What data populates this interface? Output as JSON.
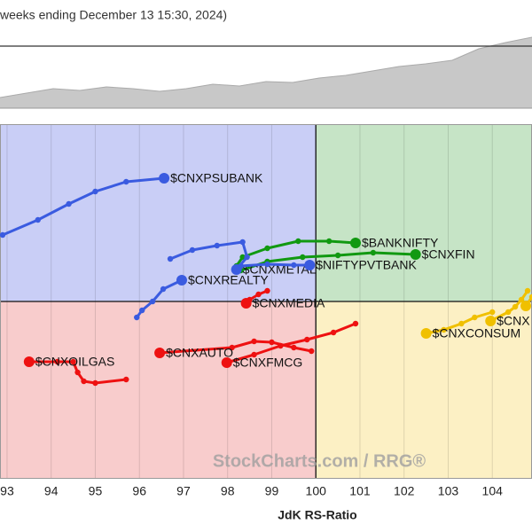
{
  "chart_data": [
    {
      "type": "area",
      "title": "weeks ending December 13 15:30, 2024)",
      "values": [
        12,
        17,
        22,
        20,
        24,
        22,
        19,
        22,
        27,
        25,
        30,
        29,
        34,
        37,
        42,
        47,
        50,
        54,
        67,
        74,
        80
      ],
      "ylim": [
        0,
        82
      ],
      "hline": 70,
      "color": "#c8c8c8"
    },
    {
      "type": "scatter",
      "xlabel": "JdK RS-Ratio",
      "watermark": "StockCharts.com / RRG®",
      "xlim": [
        92.84,
        104.9
      ],
      "ylim": [
        96,
        104
      ],
      "center": [
        100,
        100
      ],
      "xticks": [
        93,
        94,
        95,
        96,
        97,
        98,
        99,
        100,
        101,
        102,
        103,
        104
      ],
      "grid": true,
      "quadrant_colors": [
        "#c9cef6",
        "#c6e4c6",
        "#f8cccc",
        "#fcf0c4"
      ],
      "series": [
        {
          "name": "$CNXPSUBANK",
          "color": "#3a5be0",
          "x": [
            92.9,
            93.7,
            94.4,
            95.0,
            95.7,
            96.56
          ],
          "values": [
            101.5,
            101.84,
            102.2,
            102.48,
            102.7,
            102.78
          ]
        },
        {
          "name": "$BANKNIFTY",
          "color": "#119911",
          "x": [
            98.2,
            98.34,
            98.9,
            99.6,
            100.3,
            100.9
          ],
          "values": [
            100.8,
            101.0,
            101.2,
            101.36,
            101.36,
            101.32
          ]
        },
        {
          "name": "$CNXFIN",
          "color": "#119911",
          "x": [
            98.3,
            98.9,
            99.7,
            100.5,
            101.3,
            102.26
          ],
          "values": [
            100.7,
            100.9,
            101.0,
            101.04,
            101.1,
            101.06
          ]
        },
        {
          "name": "$CNXMETAL",
          "color": "#3a5be0",
          "x": [
            96.7,
            97.2,
            97.76,
            98.34,
            98.44,
            98.2
          ],
          "values": [
            100.96,
            101.16,
            101.26,
            101.34,
            101.0,
            100.72
          ]
        },
        {
          "name": "$NIFTYPVTBANK",
          "color": "#3a5be0",
          "x": [
            98.3,
            98.9,
            99.5,
            99.86
          ],
          "values": [
            100.8,
            100.84,
            100.82,
            100.82
          ]
        },
        {
          "name": "$CNXREALTY",
          "color": "#3a5be0",
          "x": [
            95.94,
            96.06,
            96.3,
            96.54,
            96.96
          ],
          "values": [
            99.64,
            99.8,
            100.0,
            100.28,
            100.48
          ]
        },
        {
          "name": "$CNXMEDIA",
          "color": "#ee1111",
          "x": [
            98.9,
            98.7,
            98.5,
            98.42
          ],
          "values": [
            100.24,
            100.16,
            100.04,
            99.96
          ]
        },
        {
          "name": "$CNXAUTO",
          "color": "#ee1111",
          "x": [
            99.9,
            99.5,
            99.0,
            98.6,
            98.1,
            96.46
          ],
          "values": [
            98.88,
            98.96,
            99.08,
            99.1,
            98.96,
            98.84
          ]
        },
        {
          "name": "$CNXFMCG",
          "color": "#ee1111",
          "x": [
            100.9,
            100.4,
            99.8,
            99.2,
            98.6,
            97.98
          ],
          "values": [
            99.5,
            99.3,
            99.14,
            99.0,
            98.8,
            98.62
          ]
        },
        {
          "name": "$CNXOILGAS",
          "color": "#ee1111",
          "x": [
            95.7,
            95.0,
            94.74,
            94.6,
            94.5,
            94.14,
            93.5
          ],
          "values": [
            98.24,
            98.16,
            98.2,
            98.4,
            98.64,
            98.64,
            98.64
          ]
        },
        {
          "name": "$CNXCONSUM",
          "color": "#f0c000",
          "x": [
            104.0,
            103.6,
            103.3,
            102.9,
            102.5
          ],
          "values": [
            99.76,
            99.64,
            99.5,
            99.36,
            99.28
          ]
        },
        {
          "name": "$CNX",
          "color": "#f0c000",
          "x": [
            104.8,
            104.66,
            104.52,
            104.36,
            103.96
          ],
          "values": [
            100.24,
            100.04,
            99.88,
            99.76,
            99.56
          ]
        },
        {
          "name": "$",
          "color": "#f0c000",
          "x": [
            104.9,
            104.76
          ],
          "values": [
            100.1,
            99.9
          ]
        }
      ]
    }
  ]
}
